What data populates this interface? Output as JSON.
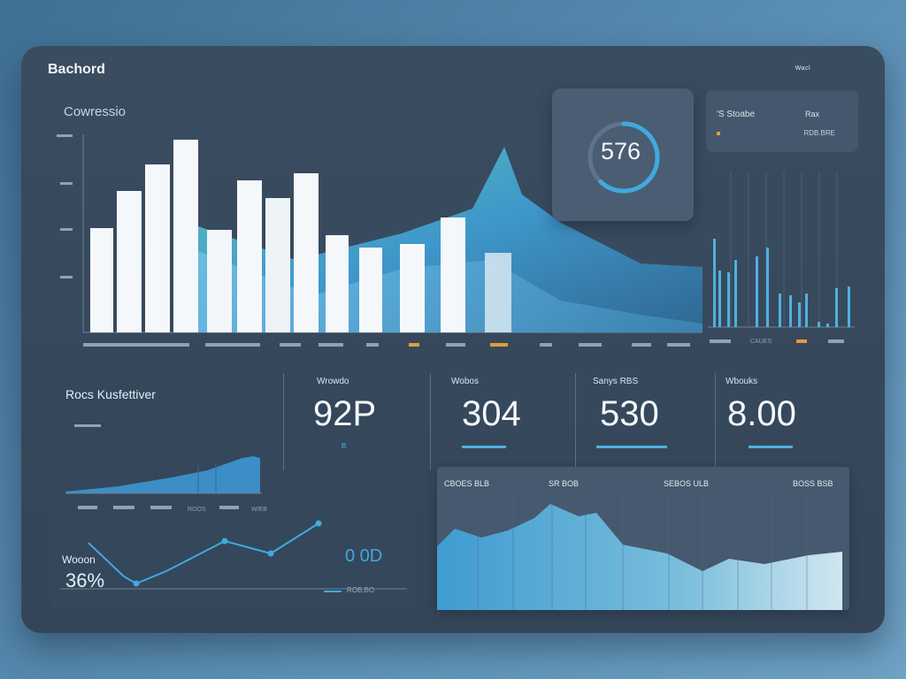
{
  "app": {
    "title": "Bachord"
  },
  "nav": [
    "",
    "Wacl",
    ""
  ],
  "overview": {
    "title": "Cowressio",
    "y_ticks": [
      "",
      "",
      "",
      "",
      ""
    ],
    "x_ticks": [
      "",
      "",
      "",
      "",
      "",
      "",
      "",
      "",
      ""
    ]
  },
  "gauge": {
    "value": "576",
    "fraction": 0.62
  },
  "mini_card": {
    "label_1": "'S Stoabe",
    "right_1": "Rax",
    "label_2": "",
    "right_2": "RDB.BRE"
  },
  "side_chart": {
    "title": "",
    "x_ticks": [
      "",
      "CAUES",
      "",
      ""
    ]
  },
  "lower_left": {
    "title": "Rocs Kusfettiver",
    "sub": "",
    "x_ticks": [
      "",
      "",
      "",
      "ROOS",
      "",
      "W/EB"
    ],
    "metric_label": "Wooon",
    "metric_value": "36%",
    "metric_right": "0 0D",
    "metric_right_sub": "ROB.BO"
  },
  "kpis": [
    {
      "label": "Wrowdo",
      "value": "92P",
      "sub": "B"
    },
    {
      "label": "Wobos",
      "value": "304",
      "sub": ""
    },
    {
      "label": "Sanys RBS",
      "value": "530",
      "sub": ""
    },
    {
      "label": "Wbouks",
      "value": "8.00",
      "sub": ""
    }
  ],
  "area_card": {
    "headers": [
      "CBOES BLB",
      "SR BOB",
      "SEBOS ULB",
      "BOSS BSB"
    ]
  },
  "colors": {
    "accent": "#4fb1e0",
    "bar_white": "#f5f8fb",
    "orange": "#e39b3b"
  }
}
